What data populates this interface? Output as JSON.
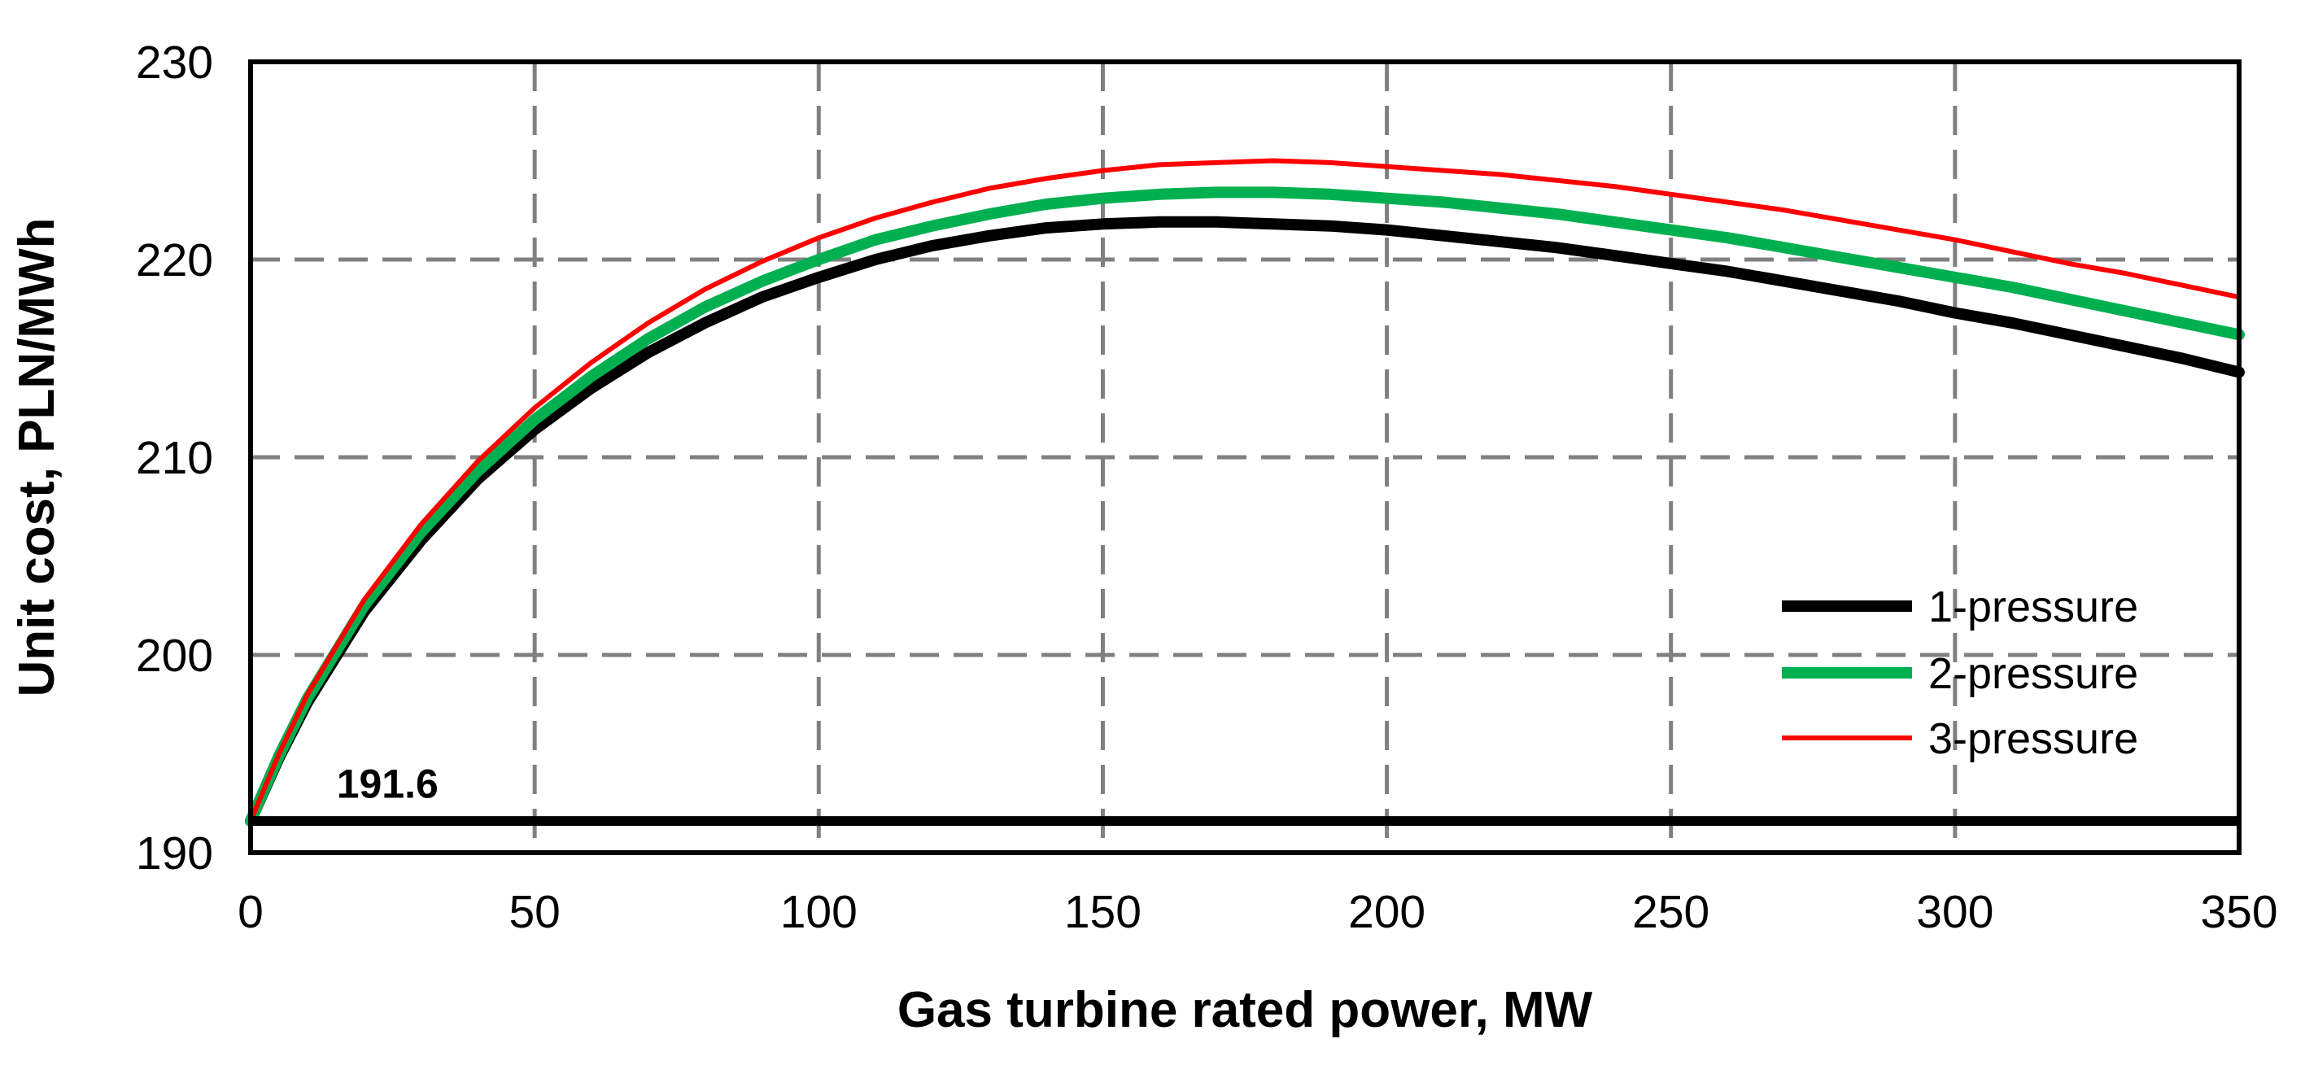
{
  "chart_data": {
    "type": "line",
    "title": "",
    "xlabel": "Gas turbine rated power, MW",
    "ylabel": "Unit cost, PLN/MWh",
    "xlim": [
      0,
      350
    ],
    "ylim": [
      190,
      230
    ],
    "xticks": [
      "0",
      "50",
      "100",
      "150",
      "200",
      "250",
      "300",
      "350"
    ],
    "yticks": [
      "190",
      "200",
      "210",
      "220",
      "230"
    ],
    "grid": true,
    "legend_position": "lower-right",
    "x": [
      0,
      5,
      10,
      20,
      30,
      40,
      50,
      60,
      70,
      80,
      90,
      100,
      110,
      120,
      130,
      140,
      150,
      160,
      170,
      180,
      190,
      200,
      210,
      220,
      230,
      240,
      250,
      260,
      270,
      280,
      290,
      300,
      310,
      320,
      330,
      340,
      350
    ],
    "series": [
      {
        "name": "1-pressure",
        "color": "#000000",
        "values": [
          191.6,
          194.8,
          197.6,
          202.2,
          205.8,
          208.9,
          211.4,
          213.5,
          215.3,
          216.8,
          218.1,
          219.1,
          220.0,
          220.7,
          221.2,
          221.6,
          221.8,
          221.9,
          221.9,
          221.8,
          221.7,
          221.5,
          221.2,
          220.9,
          220.6,
          220.2,
          219.8,
          219.4,
          218.9,
          218.4,
          217.9,
          217.3,
          216.8,
          216.2,
          215.6,
          215.0,
          214.3
        ]
      },
      {
        "name": "2-pressure",
        "color": "#00b050",
        "values": [
          191.6,
          194.9,
          197.8,
          202.5,
          206.2,
          209.3,
          211.9,
          214.1,
          216.0,
          217.6,
          218.9,
          220.0,
          221.0,
          221.7,
          222.3,
          222.8,
          223.1,
          223.3,
          223.4,
          223.4,
          223.3,
          223.1,
          222.9,
          222.6,
          222.3,
          221.9,
          221.5,
          221.1,
          220.6,
          220.1,
          219.6,
          219.1,
          218.6,
          218.0,
          217.4,
          216.8,
          216.2
        ]
      },
      {
        "name": "3-pressure",
        "color": "#ff0000",
        "values": [
          191.6,
          195.0,
          198.0,
          202.8,
          206.6,
          209.8,
          212.5,
          214.8,
          216.8,
          218.5,
          219.9,
          221.1,
          222.1,
          222.9,
          223.6,
          224.1,
          224.5,
          224.8,
          224.9,
          225.0,
          224.9,
          224.7,
          224.5,
          224.3,
          224.0,
          223.7,
          223.3,
          222.9,
          222.5,
          222.0,
          221.5,
          221.0,
          220.4,
          219.8,
          219.3,
          218.7,
          218.1
        ]
      }
    ],
    "reference_line": {
      "name": "191.6",
      "value": 191.6,
      "color": "#000000"
    },
    "annotations": [
      {
        "text": "191.6",
        "x": 18,
        "y": 193.1
      }
    ]
  }
}
